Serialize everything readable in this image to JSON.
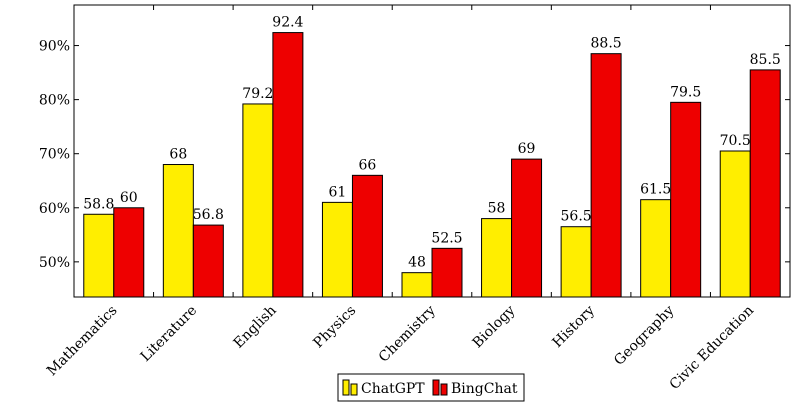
{
  "chart_data": {
    "type": "bar",
    "categories": [
      "Mathematics",
      "Literature",
      "English",
      "Physics",
      "Chemistry",
      "Biology",
      "History",
      "Geography",
      "Civic Education"
    ],
    "series": [
      {
        "name": "ChatGPT",
        "values": [
          58.8,
          68,
          79.2,
          61,
          48,
          58,
          56.5,
          61.5,
          70.5
        ],
        "color": "#ffee00"
      },
      {
        "name": "BingChat",
        "values": [
          60,
          56.8,
          92.4,
          66,
          52.5,
          69,
          88.5,
          79.5,
          85.5
        ],
        "color": "#ee0000"
      }
    ],
    "value_labels": [
      [
        "58.8",
        "68",
        "79.2",
        "61",
        "48",
        "58",
        "56.5",
        "61.5",
        "70.5"
      ],
      [
        "60",
        "56.8",
        "92.4",
        "66",
        "52.5",
        "69",
        "88.5",
        "79.5",
        "85.5"
      ]
    ],
    "yticks": [
      50,
      60,
      70,
      80,
      90
    ],
    "ytick_labels": [
      "50%",
      "60%",
      "70%",
      "80%",
      "90%"
    ],
    "ylim": [
      43.5,
      97.5
    ],
    "title": "",
    "xlabel": "",
    "ylabel": "",
    "grid": false,
    "legend_position": "bottom-center"
  }
}
